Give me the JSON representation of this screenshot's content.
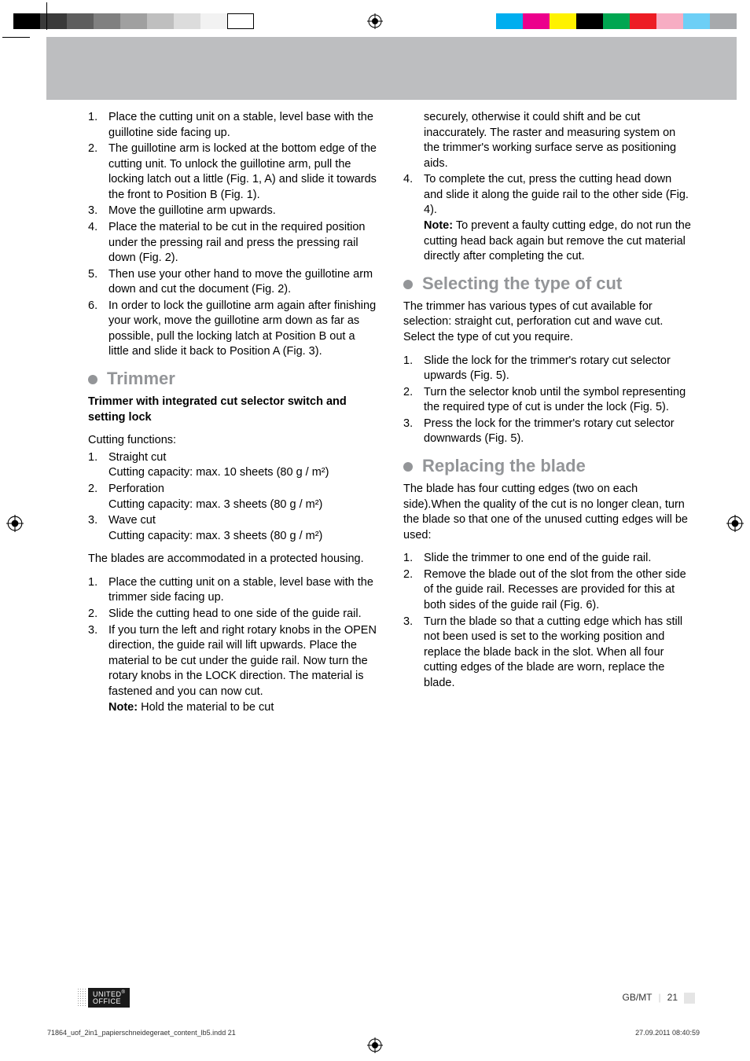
{
  "swatches_left": [
    "#000000",
    "#3a3a3a",
    "#5e5e5e",
    "#808080",
    "#a0a0a0",
    "#bfbfbf",
    "#dcdcdc",
    "#f2f2f2",
    "#ffffff"
  ],
  "swatches_right": [
    "#00aeef",
    "#ec008c",
    "#fff200",
    "#000000",
    "#00a651",
    "#ed1c24",
    "#f7adc3",
    "#6dcff6",
    "#a7a9ac"
  ],
  "left_col": {
    "list1": [
      {
        "n": "1.",
        "t": "Place the cutting unit on a stable, level base with the guillotine side facing up."
      },
      {
        "n": "2.",
        "t": "The guillotine arm is locked at the bottom edge of the cutting unit. To unlock the guillotine arm, pull the locking latch out a little (Fig. 1, A) and slide it towards the front to Position B (Fig. 1)."
      },
      {
        "n": "3.",
        "t": "Move the guillotine arm upwards."
      },
      {
        "n": "4.",
        "t": "Place the material to be cut in the required position under the pressing rail and press the pressing rail down (Fig. 2)."
      },
      {
        "n": "5.",
        "t": "Then use your other hand to move the guillotine arm down and cut the document (Fig. 2)."
      },
      {
        "n": "6.",
        "t": "In order to lock the guillotine arm again after finishing your work, move the guillotine arm down as far as possible, pull the locking latch at Position B out a little and slide it back to Position A (Fig. 3)."
      }
    ],
    "h_trimmer": "Trimmer",
    "sub_trimmer": "Trimmer with integrated cut selector switch and setting lock",
    "cut_fn_label": "Cutting functions:",
    "cut_fns": [
      {
        "n": "1.",
        "t": "Straight cut\nCutting capacity: max. 10 sheets (80 g / m²)"
      },
      {
        "n": "2.",
        "t": "Perforation\nCutting capacity: max. 3 sheets (80 g / m²)"
      },
      {
        "n": "3.",
        "t": "Wave cut\nCutting capacity: max. 3 sheets (80 g / m²)"
      }
    ],
    "blades_para": "The blades are accommodated in a protected housing.",
    "list2": [
      {
        "n": "1.",
        "t": "Place the cutting unit on a stable, level base with the trimmer side facing up."
      },
      {
        "n": "2.",
        "t": "Slide the cutting head to one side of the guide rail."
      },
      {
        "n": "3.",
        "t": "If you turn the left and right rotary knobs in the OPEN direction, the guide rail will lift upwards. Place the material to be cut under the guide rail. Now turn the rotary knobs in the LOCK direction. The material is fastened and you can now cut."
      }
    ],
    "note_label": "Note:",
    "note_text": " Hold the material to be cut"
  },
  "right_col": {
    "cont": "securely, otherwise it could shift and be cut inaccurately. The raster and measuring system on the trimmer's working surface serve as positioning aids.",
    "item4_n": "4.",
    "item4_t": "To complete the cut, press the cutting head down and slide it along the guide rail to the other side (Fig. 4).",
    "item4_note_label": "Note:",
    "item4_note": " To prevent a faulty cutting edge, do not run the cutting head back again but remove the cut material directly after completing the cut.",
    "h_select": "Selecting the type of cut",
    "select_para": "The trimmer has various types of cut available for selection: straight cut, perforation cut and wave cut. Select the type of cut you require.",
    "select_list": [
      {
        "n": "1.",
        "t": "Slide the lock for the trimmer's rotary cut selector upwards (Fig. 5)."
      },
      {
        "n": "2.",
        "t": "Turn the selector knob until the symbol representing the required type of cut is under the lock (Fig. 5)."
      },
      {
        "n": "3.",
        "t": "Press the lock for the trimmer's rotary cut selector downwards (Fig. 5)."
      }
    ],
    "h_replace": "Replacing the blade",
    "replace_para": "The blade has four cutting edges (two on each side).When the quality of the cut is no longer clean, turn the blade so that one of the unused cutting edges will be used:",
    "replace_list": [
      {
        "n": "1.",
        "t": "Slide the trimmer to one end of the guide rail."
      },
      {
        "n": "2.",
        "t": "Remove the blade out of the slot from the other side of the guide rail. Recesses are provided for this at both sides of the guide rail (Fig. 6)."
      },
      {
        "n": "3.",
        "t": "Turn the blade so that a cutting edge which has still not been used is set to the working position and replace the blade back in the slot. When all four cutting edges of the blade are worn, replace the blade."
      }
    ]
  },
  "footer": {
    "logo_top": "UNITED",
    "logo_bot": "OFFICE",
    "pg_label": "GB/MT",
    "pg_no": "21",
    "meta_left": "71864_uof_2in1_papierschneidegeraet_content_lb5.indd   21",
    "meta_right": "27.09.2011   08:40:59"
  }
}
